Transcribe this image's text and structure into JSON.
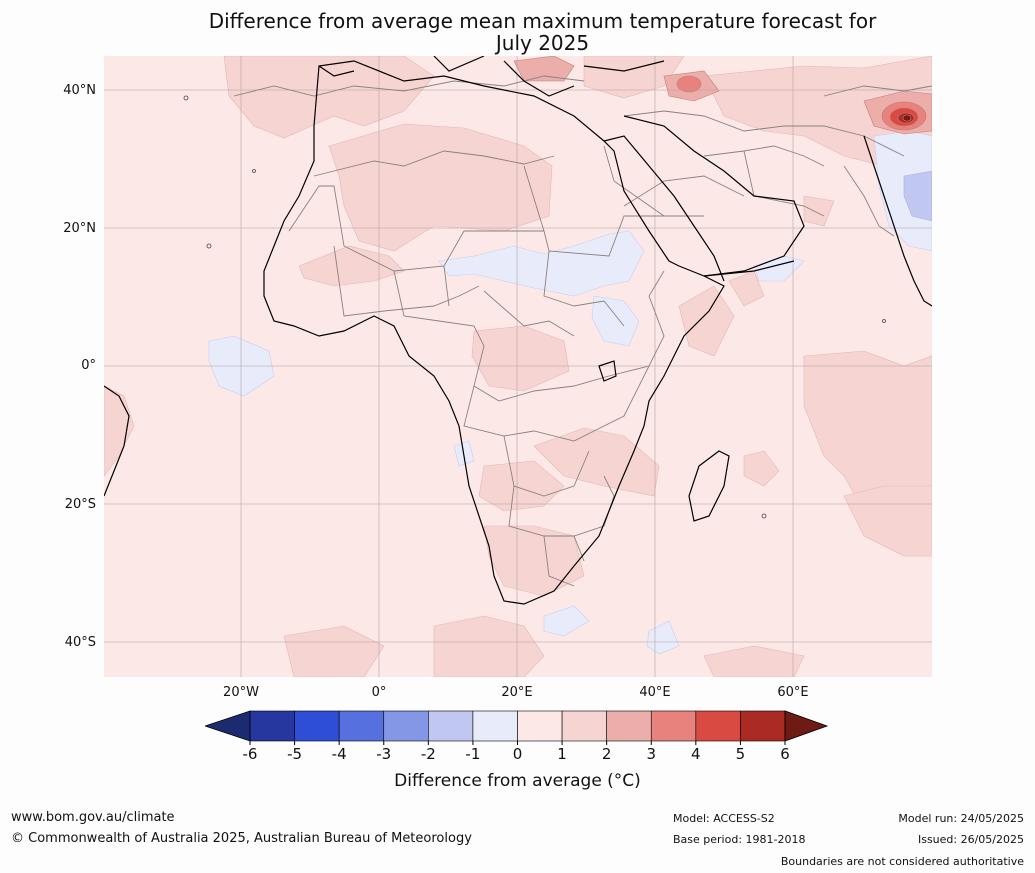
{
  "title": {
    "line1": "Difference from average mean maximum temperature forecast for",
    "line2": "July 2025"
  },
  "map": {
    "lat_ticks": [
      "40°N",
      "20°N",
      "0°",
      "20°S",
      "40°S"
    ],
    "lon_ticks": [
      "20°W",
      "0°",
      "20°E",
      "40°E",
      "60°E"
    ]
  },
  "colorbar": {
    "ticks": [
      "-6",
      "-5",
      "-4",
      "-3",
      "-2",
      "-1",
      "0",
      "1",
      "2",
      "3",
      "4",
      "5",
      "6"
    ],
    "colors": [
      "#26389f",
      "#2f4ed8",
      "#5670df",
      "#8497e6",
      "#c0c8f1",
      "#e8ebfa",
      "#fce9e7",
      "#f6d4d2",
      "#ecaeaa",
      "#e7837c",
      "#d94b42",
      "#ac2a24"
    ],
    "under_color": "#1c2a70",
    "over_color": "#6e1a15",
    "label": "Difference from average (°C)"
  },
  "footer": {
    "website": "www.bom.gov.au/climate",
    "copyright": "© Commonwealth of Australia 2025, Australian Bureau of Meteorology",
    "model": "Model: ACCESS-S2",
    "base_period": "Base period: 1981-2018",
    "model_run": "Model run: 24/05/2025",
    "issued": "Issued: 26/05/2025",
    "disclaimer": "Boundaries are not considered authoritative"
  }
}
